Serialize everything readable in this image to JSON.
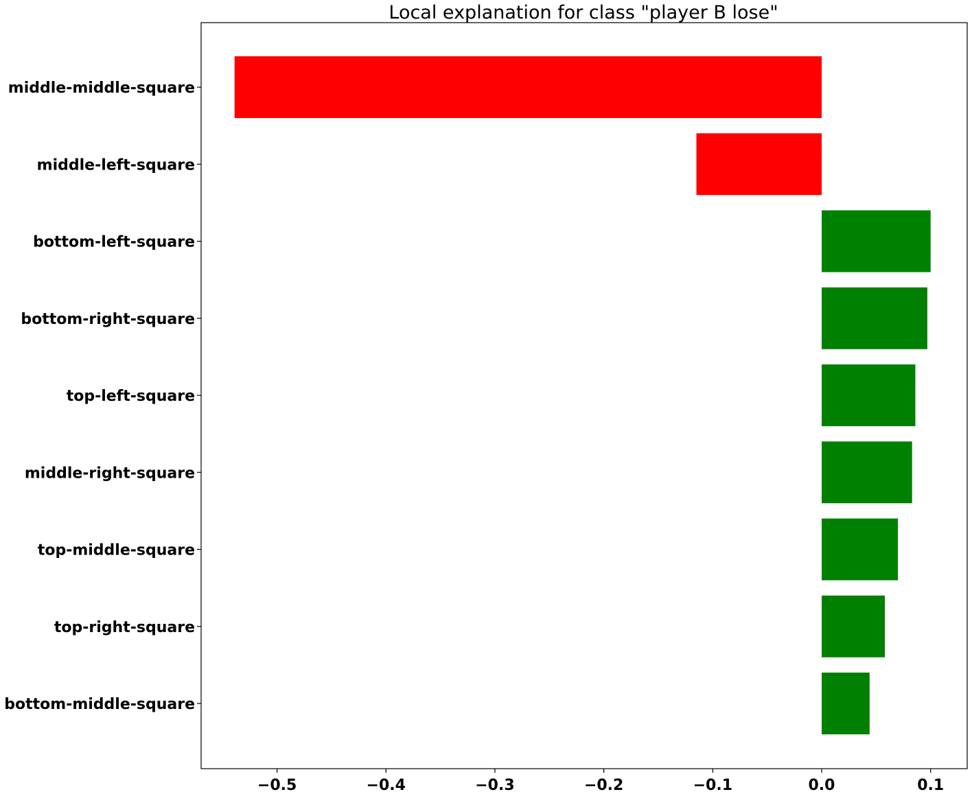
{
  "chart_data": {
    "type": "bar",
    "orientation": "horizontal",
    "title": "Local explanation for class \"player B lose\"",
    "xlabel": "",
    "ylabel": "",
    "xlim": [
      -0.5697,
      0.1336
    ],
    "grid": false,
    "categories": [
      "middle-middle-square",
      "middle-left-square",
      "bottom-left-square",
      "bottom-right-square",
      "top-left-square",
      "middle-right-square",
      "top-middle-square",
      "top-right-square",
      "bottom-middle-square"
    ],
    "values": [
      -0.539,
      -0.115,
      0.1,
      0.097,
      0.086,
      0.083,
      0.07,
      0.058,
      0.044
    ],
    "xticks": [
      -0.5,
      -0.4,
      -0.3,
      -0.2,
      -0.1,
      0.0,
      0.1
    ],
    "xtick_labels": [
      "−0.5",
      "−0.4",
      "−0.3",
      "−0.2",
      "−0.1",
      "0.0",
      "0.1"
    ],
    "colors": {
      "positive": "#008000",
      "negative": "#ff0000",
      "axis": "#000000"
    }
  }
}
